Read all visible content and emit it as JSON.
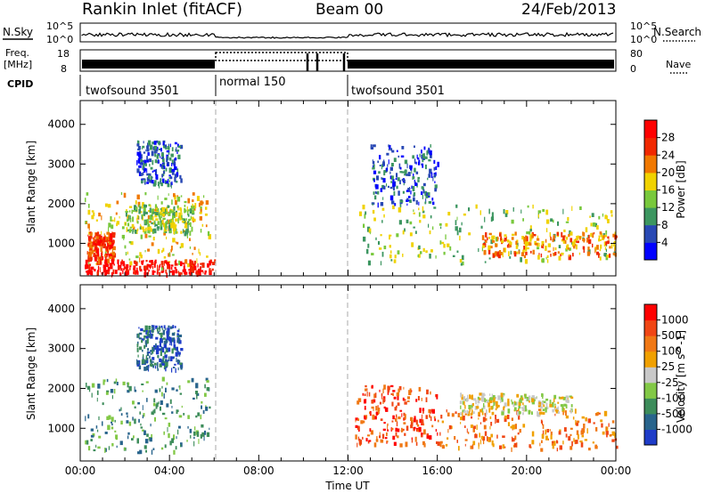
{
  "header": {
    "station": "Rankin Inlet (fitACF)",
    "beam": "Beam 00",
    "date": "24/Feb/2013"
  },
  "nsky_panel": {
    "left_label": "N.Sky",
    "left_ticks": [
      "10^5",
      "10^0"
    ],
    "right_ticks": [
      "10^5",
      "10^0"
    ],
    "right_label": "N.Search"
  },
  "freq_panel": {
    "left_label_1": "Freq.",
    "left_label_2": "[MHz]",
    "left_ticks": [
      "18",
      "8"
    ],
    "right_ticks": [
      "80",
      "0"
    ],
    "right_label": "Nave"
  },
  "cpid_panel": {
    "label": "CPID",
    "segments": [
      {
        "name": "twofsound 3501",
        "start": 0,
        "end": 6
      },
      {
        "name": "normal 150",
        "start": 6,
        "end": 12
      },
      {
        "name": "twofsound 3501",
        "start": 12,
        "end": 24
      }
    ]
  },
  "chart_data": [
    {
      "type": "heatmap",
      "name": "power",
      "ylabel": "Slant Range [km]",
      "xlim": [
        0,
        24
      ],
      "ylim": [
        180,
        4600
      ],
      "yticks": [
        1000,
        2000,
        3000,
        4000
      ],
      "colorbar": {
        "label": "Power [dB]",
        "tick_labels": [
          "4",
          "8",
          "12",
          "16",
          "20",
          "24",
          "28"
        ],
        "colors": [
          "#0000ff",
          "#2848b4",
          "#3c9660",
          "#78c83c",
          "#f0d200",
          "#f07800",
          "#f02800",
          "#ff0000"
        ]
      },
      "regions": [
        {
          "t": [
            0.2,
            5.8
          ],
          "r": [
            400,
            2300
          ],
          "level": 4
        },
        {
          "t": [
            0.2,
            6
          ],
          "r": [
            250,
            600
          ],
          "level": 7
        },
        {
          "t": [
            0.3,
            1.5
          ],
          "r": [
            600,
            1300
          ],
          "level": 6
        },
        {
          "t": [
            2,
            5
          ],
          "r": [
            1300,
            2000
          ],
          "level": 3
        },
        {
          "t": [
            2.5,
            4.5
          ],
          "r": [
            2500,
            3600
          ],
          "level": 1
        },
        {
          "t": [
            12.3,
            24
          ],
          "r": [
            500,
            2000
          ],
          "level": 3
        },
        {
          "t": [
            13,
            16
          ],
          "r": [
            2000,
            3500
          ],
          "level": 1
        },
        {
          "t": [
            18,
            24
          ],
          "r": [
            700,
            1300
          ],
          "level": 5
        }
      ]
    },
    {
      "type": "heatmap",
      "name": "velocity",
      "ylabel": "Slant Range [km]",
      "xlabel": "Time UT",
      "xlim": [
        0,
        24
      ],
      "ylim": [
        180,
        4600
      ],
      "xticks": [
        "00:00",
        "04:00",
        "08:00",
        "12:00",
        "16:00",
        "20:00",
        "00:00"
      ],
      "yticks": [
        1000,
        2000,
        3000,
        4000
      ],
      "colorbar": {
        "label": "Velocity [m s^-1]",
        "tick_labels": [
          "1000",
          "500",
          "100",
          "25",
          "-25",
          "-100",
          "-500",
          "-1000"
        ],
        "colors": [
          "#1e3cc8",
          "#28648c",
          "#3c8c5a",
          "#82c846",
          "#c8c8c8",
          "#f0a000",
          "#f07814",
          "#f04614",
          "#ff0000"
        ]
      },
      "regions": [
        {
          "t": [
            0.2,
            5.8
          ],
          "r": [
            400,
            2300
          ],
          "level": 2
        },
        {
          "t": [
            2.5,
            4.5
          ],
          "r": [
            2500,
            3600
          ],
          "level": 1
        },
        {
          "t": [
            12.3,
            16
          ],
          "r": [
            600,
            2100
          ],
          "level": 7
        },
        {
          "t": [
            16,
            24
          ],
          "r": [
            500,
            1500
          ],
          "level": 6
        },
        {
          "t": [
            17,
            22
          ],
          "r": [
            1400,
            1900
          ],
          "level": 4
        }
      ]
    }
  ]
}
